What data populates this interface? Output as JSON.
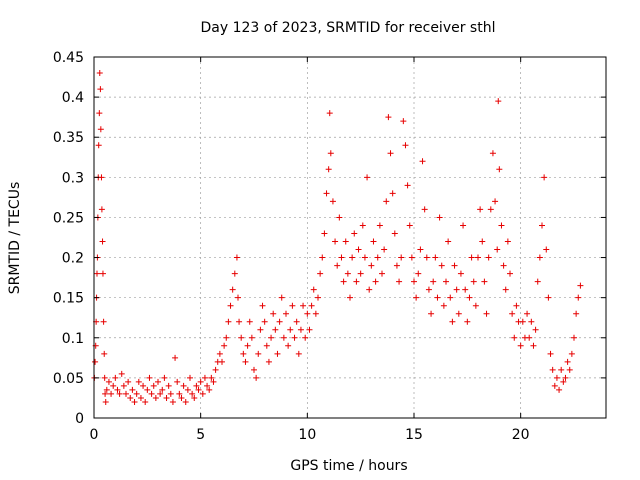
{
  "chart_data": {
    "type": "scatter",
    "title": "Day 123 of 2023, SRMTID for receiver sthl",
    "xlabel": "GPS time / hours",
    "ylabel": "SRMTID / TECUs",
    "xlim": [
      0,
      24
    ],
    "ylim": [
      0,
      0.45
    ],
    "xticks": [
      0,
      5,
      10,
      15,
      20
    ],
    "yticks": [
      0,
      0.05,
      0.1,
      0.15,
      0.2,
      0.25,
      0.3,
      0.35,
      0.4,
      0.45
    ],
    "ytick_labels": [
      "0",
      "0.05",
      "0.1",
      "0.15",
      "0.2",
      "0.25",
      "0.3",
      "0.35",
      "0.4",
      "0.45"
    ],
    "grid": true,
    "marker": "plus",
    "color": "#e60000",
    "series": [
      {
        "name": "",
        "points": [
          [
            0.02,
            0.05
          ],
          [
            0.05,
            0.07
          ],
          [
            0.08,
            0.09
          ],
          [
            0.1,
            0.12
          ],
          [
            0.12,
            0.15
          ],
          [
            0.14,
            0.18
          ],
          [
            0.16,
            0.2
          ],
          [
            0.18,
            0.25
          ],
          [
            0.2,
            0.3
          ],
          [
            0.22,
            0.34
          ],
          [
            0.25,
            0.38
          ],
          [
            0.27,
            0.43
          ],
          [
            0.3,
            0.41
          ],
          [
            0.32,
            0.36
          ],
          [
            0.35,
            0.3
          ],
          [
            0.37,
            0.26
          ],
          [
            0.4,
            0.22
          ],
          [
            0.42,
            0.18
          ],
          [
            0.45,
            0.12
          ],
          [
            0.48,
            0.08
          ],
          [
            0.5,
            0.05
          ],
          [
            0.52,
            0.03
          ],
          [
            0.55,
            0.02
          ],
          [
            0.6,
            0.035
          ],
          [
            0.7,
            0.045
          ],
          [
            0.8,
            0.03
          ],
          [
            0.9,
            0.04
          ],
          [
            1.0,
            0.05
          ],
          [
            1.1,
            0.035
          ],
          [
            1.2,
            0.03
          ],
          [
            1.3,
            0.055
          ],
          [
            1.4,
            0.04
          ],
          [
            1.5,
            0.03
          ],
          [
            1.6,
            0.045
          ],
          [
            1.7,
            0.025
          ],
          [
            1.8,
            0.035
          ],
          [
            1.9,
            0.02
          ],
          [
            2.0,
            0.03
          ],
          [
            2.1,
            0.045
          ],
          [
            2.2,
            0.025
          ],
          [
            2.3,
            0.04
          ],
          [
            2.4,
            0.02
          ],
          [
            2.5,
            0.035
          ],
          [
            2.6,
            0.05
          ],
          [
            2.7,
            0.03
          ],
          [
            2.8,
            0.04
          ],
          [
            2.9,
            0.025
          ],
          [
            3.0,
            0.045
          ],
          [
            3.1,
            0.03
          ],
          [
            3.2,
            0.035
          ],
          [
            3.3,
            0.05
          ],
          [
            3.4,
            0.025
          ],
          [
            3.5,
            0.04
          ],
          [
            3.6,
            0.03
          ],
          [
            3.7,
            0.02
          ],
          [
            3.8,
            0.075
          ],
          [
            3.9,
            0.045
          ],
          [
            4.0,
            0.03
          ],
          [
            4.1,
            0.025
          ],
          [
            4.2,
            0.04
          ],
          [
            4.3,
            0.02
          ],
          [
            4.4,
            0.035
          ],
          [
            4.5,
            0.05
          ],
          [
            4.6,
            0.03
          ],
          [
            4.7,
            0.025
          ],
          [
            4.8,
            0.04
          ],
          [
            4.9,
            0.035
          ],
          [
            5.0,
            0.045
          ],
          [
            5.1,
            0.03
          ],
          [
            5.2,
            0.05
          ],
          [
            5.3,
            0.04
          ],
          [
            5.4,
            0.035
          ],
          [
            5.5,
            0.05
          ],
          [
            5.6,
            0.045
          ],
          [
            5.7,
            0.06
          ],
          [
            5.8,
            0.07
          ],
          [
            5.9,
            0.08
          ],
          [
            6.0,
            0.07
          ],
          [
            6.1,
            0.09
          ],
          [
            6.2,
            0.1
          ],
          [
            6.3,
            0.12
          ],
          [
            6.4,
            0.14
          ],
          [
            6.5,
            0.16
          ],
          [
            6.6,
            0.18
          ],
          [
            6.7,
            0.2
          ],
          [
            6.75,
            0.15
          ],
          [
            6.8,
            0.12
          ],
          [
            6.9,
            0.1
          ],
          [
            7.0,
            0.08
          ],
          [
            7.1,
            0.07
          ],
          [
            7.2,
            0.09
          ],
          [
            7.3,
            0.12
          ],
          [
            7.4,
            0.1
          ],
          [
            7.5,
            0.06
          ],
          [
            7.6,
            0.05
          ],
          [
            7.7,
            0.08
          ],
          [
            7.8,
            0.11
          ],
          [
            7.9,
            0.14
          ],
          [
            8.0,
            0.12
          ],
          [
            8.1,
            0.09
          ],
          [
            8.2,
            0.07
          ],
          [
            8.3,
            0.1
          ],
          [
            8.4,
            0.13
          ],
          [
            8.5,
            0.11
          ],
          [
            8.6,
            0.08
          ],
          [
            8.7,
            0.12
          ],
          [
            8.8,
            0.15
          ],
          [
            8.9,
            0.1
          ],
          [
            9.0,
            0.13
          ],
          [
            9.1,
            0.09
          ],
          [
            9.2,
            0.11
          ],
          [
            9.3,
            0.14
          ],
          [
            9.4,
            0.1
          ],
          [
            9.5,
            0.12
          ],
          [
            9.6,
            0.08
          ],
          [
            9.7,
            0.11
          ],
          [
            9.8,
            0.14
          ],
          [
            9.9,
            0.1
          ],
          [
            10.0,
            0.13
          ],
          [
            10.1,
            0.11
          ],
          [
            10.2,
            0.14
          ],
          [
            10.3,
            0.16
          ],
          [
            10.4,
            0.13
          ],
          [
            10.5,
            0.15
          ],
          [
            10.6,
            0.18
          ],
          [
            10.7,
            0.2
          ],
          [
            10.8,
            0.23
          ],
          [
            10.9,
            0.28
          ],
          [
            11.0,
            0.31
          ],
          [
            11.05,
            0.38
          ],
          [
            11.1,
            0.33
          ],
          [
            11.2,
            0.27
          ],
          [
            11.3,
            0.22
          ],
          [
            11.4,
            0.19
          ],
          [
            11.5,
            0.25
          ],
          [
            11.6,
            0.2
          ],
          [
            11.7,
            0.17
          ],
          [
            11.8,
            0.22
          ],
          [
            11.9,
            0.18
          ],
          [
            12.0,
            0.15
          ],
          [
            12.1,
            0.2
          ],
          [
            12.2,
            0.23
          ],
          [
            12.3,
            0.17
          ],
          [
            12.4,
            0.21
          ],
          [
            12.5,
            0.18
          ],
          [
            12.6,
            0.24
          ],
          [
            12.7,
            0.2
          ],
          [
            12.8,
            0.3
          ],
          [
            12.9,
            0.16
          ],
          [
            13.0,
            0.19
          ],
          [
            13.1,
            0.22
          ],
          [
            13.2,
            0.17
          ],
          [
            13.3,
            0.2
          ],
          [
            13.4,
            0.24
          ],
          [
            13.5,
            0.18
          ],
          [
            13.6,
            0.21
          ],
          [
            13.7,
            0.27
          ],
          [
            13.8,
            0.375
          ],
          [
            13.9,
            0.33
          ],
          [
            14.0,
            0.28
          ],
          [
            14.1,
            0.23
          ],
          [
            14.2,
            0.19
          ],
          [
            14.3,
            0.17
          ],
          [
            14.4,
            0.2
          ],
          [
            14.5,
            0.37
          ],
          [
            14.6,
            0.34
          ],
          [
            14.7,
            0.29
          ],
          [
            14.8,
            0.24
          ],
          [
            14.9,
            0.2
          ],
          [
            15.0,
            0.17
          ],
          [
            15.1,
            0.15
          ],
          [
            15.2,
            0.18
          ],
          [
            15.3,
            0.21
          ],
          [
            15.4,
            0.32
          ],
          [
            15.5,
            0.26
          ],
          [
            15.6,
            0.2
          ],
          [
            15.7,
            0.16
          ],
          [
            15.8,
            0.13
          ],
          [
            15.9,
            0.17
          ],
          [
            16.0,
            0.2
          ],
          [
            16.1,
            0.15
          ],
          [
            16.2,
            0.25
          ],
          [
            16.3,
            0.19
          ],
          [
            16.4,
            0.14
          ],
          [
            16.5,
            0.17
          ],
          [
            16.6,
            0.22
          ],
          [
            16.7,
            0.15
          ],
          [
            16.8,
            0.12
          ],
          [
            16.9,
            0.19
          ],
          [
            17.0,
            0.16
          ],
          [
            17.1,
            0.13
          ],
          [
            17.2,
            0.18
          ],
          [
            17.3,
            0.24
          ],
          [
            17.4,
            0.16
          ],
          [
            17.5,
            0.12
          ],
          [
            17.6,
            0.15
          ],
          [
            17.7,
            0.2
          ],
          [
            17.8,
            0.17
          ],
          [
            17.9,
            0.14
          ],
          [
            18.0,
            0.2
          ],
          [
            18.1,
            0.26
          ],
          [
            18.2,
            0.22
          ],
          [
            18.3,
            0.17
          ],
          [
            18.4,
            0.13
          ],
          [
            18.5,
            0.2
          ],
          [
            18.6,
            0.26
          ],
          [
            18.7,
            0.33
          ],
          [
            18.8,
            0.27
          ],
          [
            18.9,
            0.21
          ],
          [
            18.95,
            0.395
          ],
          [
            19.0,
            0.31
          ],
          [
            19.1,
            0.24
          ],
          [
            19.2,
            0.19
          ],
          [
            19.3,
            0.16
          ],
          [
            19.4,
            0.22
          ],
          [
            19.5,
            0.18
          ],
          [
            19.6,
            0.13
          ],
          [
            19.7,
            0.1
          ],
          [
            19.8,
            0.14
          ],
          [
            19.9,
            0.12
          ],
          [
            20.0,
            0.09
          ],
          [
            20.1,
            0.12
          ],
          [
            20.2,
            0.1
          ],
          [
            20.3,
            0.13
          ],
          [
            20.4,
            0.1
          ],
          [
            20.5,
            0.12
          ],
          [
            20.6,
            0.09
          ],
          [
            20.7,
            0.11
          ],
          [
            20.8,
            0.17
          ],
          [
            20.9,
            0.2
          ],
          [
            21.0,
            0.24
          ],
          [
            21.1,
            0.3
          ],
          [
            21.2,
            0.21
          ],
          [
            21.3,
            0.15
          ],
          [
            21.4,
            0.08
          ],
          [
            21.5,
            0.06
          ],
          [
            21.6,
            0.04
          ],
          [
            21.7,
            0.05
          ],
          [
            21.8,
            0.035
          ],
          [
            21.9,
            0.06
          ],
          [
            22.0,
            0.045
          ],
          [
            22.1,
            0.05
          ],
          [
            22.2,
            0.07
          ],
          [
            22.3,
            0.06
          ],
          [
            22.4,
            0.08
          ],
          [
            22.5,
            0.1
          ],
          [
            22.6,
            0.13
          ],
          [
            22.7,
            0.15
          ],
          [
            22.8,
            0.165
          ]
        ]
      }
    ]
  }
}
